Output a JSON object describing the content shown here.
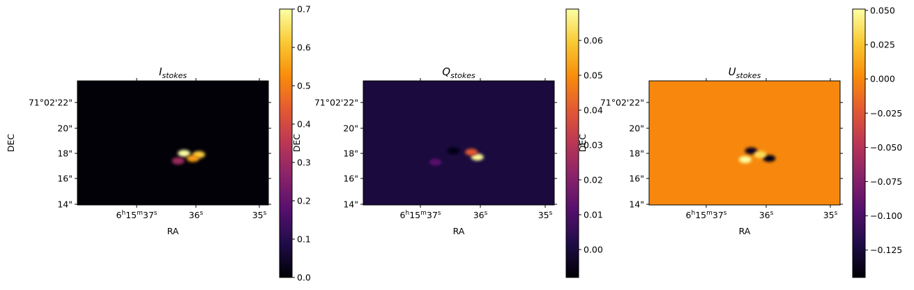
{
  "colors": {
    "colormap": "inferno"
  },
  "chart_data": [
    {
      "type": "heatmap",
      "title": {
        "base": "I",
        "sub": "stokes"
      },
      "xlabel": "RA",
      "ylabel": "DEC",
      "x_ticks": [
        {
          "main": "6",
          "sup1": "h",
          "mid1": "15",
          "sup2": "m",
          "mid2": "37",
          "sup3": "s"
        },
        {
          "main": "36",
          "sup1": "s"
        },
        {
          "main": "35",
          "sup1": "s"
        }
      ],
      "y_ticks": [
        "71°02'22\"",
        "20\"",
        "18\"",
        "16\"",
        "14\""
      ],
      "colorbar": {
        "vmin": 0.0,
        "vmax": 0.7,
        "ticks": [
          "0.7",
          "0.6",
          "0.5",
          "0.4",
          "0.3",
          "0.2",
          "0.1",
          "0.0"
        ]
      },
      "background_value": 0.005,
      "features": [
        {
          "ra_s": 36.2,
          "dec_s": 18.0,
          "value": 0.7
        },
        {
          "ra_s": 35.95,
          "dec_s": 17.9,
          "value": 0.62
        },
        {
          "ra_s": 36.05,
          "dec_s": 17.6,
          "value": 0.55
        },
        {
          "ra_s": 36.3,
          "dec_s": 17.4,
          "value": 0.3
        }
      ]
    },
    {
      "type": "heatmap",
      "title": {
        "base": "Q",
        "sub": "stokes"
      },
      "xlabel": "RA",
      "ylabel": "DEC",
      "x_ticks": [
        {
          "main": "6",
          "sup1": "h",
          "mid1": "15",
          "sup2": "m",
          "mid2": "37",
          "sup3": "s"
        },
        {
          "main": "36",
          "sup1": "s"
        },
        {
          "main": "35",
          "sup1": "s"
        }
      ],
      "y_ticks": [
        "71°02'22\"",
        "20\"",
        "18\"",
        "16\"",
        "14\""
      ],
      "colorbar": {
        "vmin": -0.008,
        "vmax": 0.069,
        "ticks": [
          "0.06",
          "0.05",
          "0.04",
          "0.03",
          "0.02",
          "0.01",
          "0.00"
        ]
      },
      "background_value": 0.0,
      "features": [
        {
          "ra_s": 36.05,
          "dec_s": 17.7,
          "value": 0.068
        },
        {
          "ra_s": 36.15,
          "dec_s": 18.1,
          "value": 0.04
        },
        {
          "ra_s": 36.45,
          "dec_s": 18.2,
          "value": -0.006
        },
        {
          "ra_s": 36.75,
          "dec_s": 17.3,
          "value": 0.012
        }
      ]
    },
    {
      "type": "heatmap",
      "title": {
        "base": "U",
        "sub": "stokes"
      },
      "xlabel": "RA",
      "ylabel": "DEC",
      "x_ticks": [
        {
          "main": "6",
          "sup1": "h",
          "mid1": "15",
          "sup2": "m",
          "mid2": "37",
          "sup3": "s"
        },
        {
          "main": "36",
          "sup1": "s"
        },
        {
          "main": "35",
          "sup1": "s"
        }
      ],
      "y_ticks": [
        "71°02'22\"",
        "20\"",
        "18\"",
        "16\"",
        "14\""
      ],
      "colorbar": {
        "vmin": -0.145,
        "vmax": 0.051,
        "ticks": [
          "0.050",
          "0.025",
          "0.000",
          "−0.025",
          "−0.050",
          "−0.075",
          "−0.100",
          "−0.125"
        ]
      },
      "background_value": 0.0,
      "features": [
        {
          "ra_s": 36.25,
          "dec_s": 18.2,
          "value": -0.135
        },
        {
          "ra_s": 35.95,
          "dec_s": 17.6,
          "value": -0.14
        },
        {
          "ra_s": 36.35,
          "dec_s": 17.5,
          "value": 0.05
        },
        {
          "ra_s": 36.1,
          "dec_s": 17.9,
          "value": 0.035
        }
      ]
    }
  ]
}
